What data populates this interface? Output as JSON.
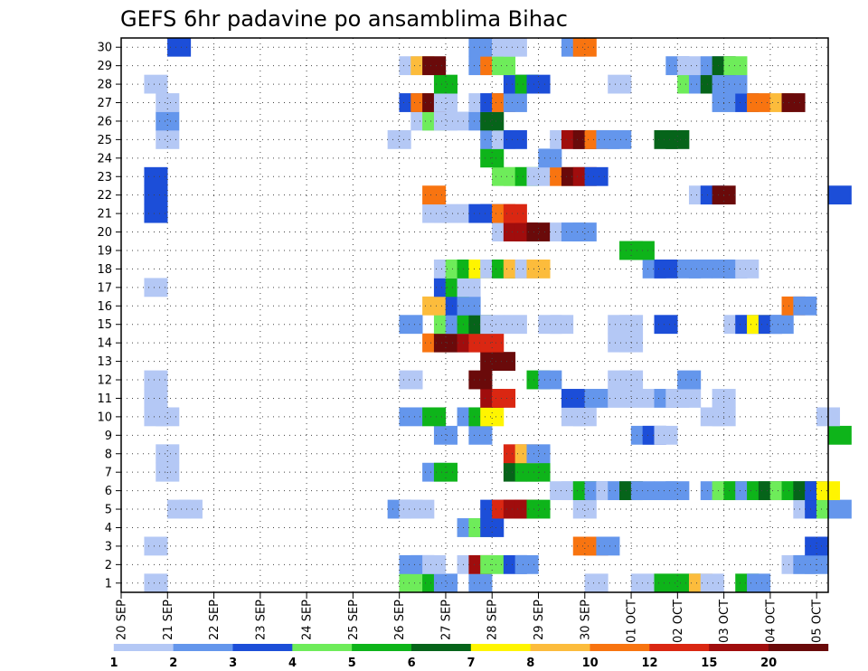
{
  "chart_data": {
    "type": "heatmap",
    "title": "GEFS 6hr padavine po ansamblima Bihac",
    "xlabel": "",
    "ylabel": "",
    "x_ticks": [
      "20 SEP",
      "21 SEP",
      "22 SEP",
      "23 SEP",
      "24 SEP",
      "25 SEP",
      "26 SEP",
      "27 SEP",
      "28 SEP",
      "29 SEP",
      "30 SEP",
      "01 OCT",
      "02 OCT",
      "03 OCT",
      "04 OCT",
      "05 OCT"
    ],
    "y_ticks": [
      "1",
      "2",
      "3",
      "4",
      "5",
      "6",
      "7",
      "8",
      "9",
      "10",
      "11",
      "12",
      "13",
      "14",
      "15",
      "16",
      "17",
      "18",
      "19",
      "20",
      "21",
      "22",
      "23",
      "24",
      "25",
      "26",
      "27",
      "28",
      "29",
      "30"
    ],
    "x_range": [
      "20 SEP",
      "05 OCT"
    ],
    "y_range": [
      0,
      30
    ],
    "grid": "dotted",
    "colorbar": {
      "position": "bottom",
      "levels": [
        "1",
        "2",
        "3",
        "4",
        "5",
        "6",
        "7",
        "8",
        "10",
        "12",
        "15",
        "20"
      ],
      "colors": [
        "#b4c8f5",
        "#6496ec",
        "#1c4ed8",
        "#6eec5a",
        "#0eb41a",
        "#06641a",
        "#fff500",
        "#fcbc3c",
        "#f87410",
        "#da2712",
        "#a00d0d",
        "#6a0a0a"
      ]
    },
    "cells_by_member": {
      "1": {
        "1.0": 1,
        "12.0": 4,
        "13.0": 5,
        "13.5": 2,
        "15.0": 2,
        "20.0": 1,
        "22.0": 1,
        "23.0": 5,
        "24.0": 5,
        "24.5": 8,
        "25.0": 1,
        "26.5": 5,
        "27.0": 2
      },
      "2": {
        "12.0": 2,
        "12.5": 2,
        "13.0": 1,
        "14.5": 1,
        "15.0": 11,
        "15.5": 4,
        "16.5": 3,
        "17.0": 2,
        "28.5": 1,
        "29.0": 2,
        "29.5": 2
      },
      "3": {
        "1.0": 1,
        "19.5": 9,
        "20.0": 9,
        "20.5": 2,
        "29.5": 3
      },
      "4": {
        "14.5": 2,
        "15.0": 4,
        "15.5": 3
      },
      "5": {
        "2.0": 1,
        "2.5": 1,
        "11.5": 2,
        "12.0": 1,
        "12.5": 1,
        "15.5": 3,
        "16.0": 10,
        "16.5": 11,
        "17.0": 11,
        "17.5": 5,
        "19.5": 1,
        "29.0": 1,
        "29.5": 3,
        "30.0": 4,
        "30.5": 2
      },
      "6": {
        "18.5": 1,
        "19.0": 1,
        "19.5": 5,
        "20.0": 2,
        "20.5": 1,
        "21.0": 2,
        "21.5": 6,
        "22.0": 2,
        "23.0": 2,
        "23.5": 2,
        "25.0": 2,
        "25.5": 4,
        "26.0": 5,
        "26.5": 2,
        "27.0": 5,
        "27.5": 6,
        "28.0": 4,
        "28.5": 5,
        "29.0": 6,
        "29.5": 3,
        "30.0": 7
      },
      "7": {
        "1.5": 1,
        "13.0": 2,
        "13.5": 5,
        "16.5": 6,
        "17.0": 5,
        "17.5": 5
      },
      "8": {
        "1.5": 1,
        "16.5": 10,
        "17.0": 8,
        "17.5": 2
      },
      "9": {
        "13.5": 2,
        "15.0": 2,
        "22.0": 2,
        "22.5": 3,
        "23.0": 1,
        "30.5": 5
      },
      "10": {
        "1.0": 1,
        "1.5": 1,
        "12.0": 2,
        "13.0": 5,
        "14.5": 2,
        "15.0": 5,
        "15.5": 7,
        "19.0": 1,
        "19.5": 1,
        "25.0": 1,
        "25.5": 1,
        "30.0": 1
      },
      "11": {
        "1.0": 1,
        "15.5": 11,
        "16.0": 10,
        "19.0": 3,
        "20.0": 2,
        "21.0": 1,
        "22.0": 1,
        "23.0": 2,
        "23.5": 1,
        "24.0": 1,
        "25.5": 1
      },
      "12": {
        "1.0": 1,
        "12.0": 1,
        "15.0": 12,
        "17.5": 5,
        "18.0": 2,
        "21.0": 1,
        "21.5": 1,
        "24.0": 2
      },
      "13": {
        "15.5": 12,
        "16.0": 12
      },
      "14": {
        "13.0": 9,
        "13.5": 12,
        "14.0": 12,
        "14.5": 11,
        "15.0": 10,
        "15.5": 10,
        "21.0": 1,
        "21.5": 1
      },
      "15": {
        "12.0": 2,
        "13.5": 4,
        "14.0": 2,
        "14.5": 5,
        "15.0": 6,
        "15.5": 1,
        "16.5": 1,
        "18.0": 1,
        "18.5": 1,
        "21.0": 1,
        "21.5": 1,
        "23.0": 3,
        "26.0": 1,
        "26.5": 3,
        "27.0": 7,
        "27.5": 3,
        "28.0": 2
      },
      "16": {
        "13.0": 8,
        "14.0": 3,
        "14.5": 2,
        "28.5": 9,
        "29.0": 2
      },
      "17": {
        "1.0": 1,
        "13.5": 3,
        "14.0": 5,
        "14.5": 1
      },
      "18": {
        "13.5": 1,
        "14.0": 4,
        "14.5": 5,
        "15.0": 7,
        "15.5": 1,
        "16.0": 5,
        "16.5": 8,
        "17.0": 1,
        "17.5": 8,
        "22.5": 2,
        "23.0": 3,
        "24.0": 2,
        "24.5": 2,
        "25.5": 2,
        "26.0": 2,
        "26.5": 1
      },
      "19": {
        "21.5": 5,
        "22.0": 5
      },
      "20": {
        "16.0": 1,
        "16.5": 11,
        "17.0": 11,
        "17.5": 12,
        "18.5": 1,
        "19.0": 2,
        "19.5": 2
      },
      "21": {
        "1.0": 3,
        "13.0": 1,
        "13.5": 1,
        "14.5": 1,
        "15.0": 3,
        "15.5": 3,
        "16.0": 9,
        "16.5": 10
      },
      "22": {
        "1.0": 3,
        "13.0": 9,
        "24.5": 1,
        "25.0": 3,
        "25.5": 12,
        "30.5": 3
      },
      "23": {
        "1.0": 3,
        "16.0": 4,
        "16.5": 4,
        "17.0": 5,
        "17.5": 1,
        "18.5": 9,
        "19.0": 12,
        "19.5": 11,
        "20.0": 3
      },
      "24": {
        "15.5": 5,
        "18.0": 2
      },
      "25": {
        "1.5": 1,
        "11.5": 1,
        "15.5": 2,
        "16.0": 1,
        "16.5": 3,
        "18.5": 1,
        "19.0": 11,
        "19.5": 12,
        "20.0": 9,
        "20.5": 2,
        "21.0": 2,
        "23.0": 6,
        "23.5": 6
      },
      "26": {
        "1.5": 2,
        "12.5": 1,
        "13.0": 4,
        "13.5": 1,
        "14.0": 1,
        "15.0": 2,
        "15.5": 6
      },
      "27": {
        "1.5": 1,
        "12.0": 3,
        "12.5": 9,
        "13.0": 12,
        "13.5": 1,
        "15.0": 1,
        "15.5": 3,
        "16.0": 9,
        "16.5": 2,
        "25.5": 2,
        "26.5": 3,
        "27.0": 9,
        "28.0": 8,
        "28.5": 12
      },
      "28": {
        "1.0": 1,
        "13.5": 5,
        "16.5": 3,
        "17.0": 5,
        "17.5": 3,
        "21.0": 1,
        "24.0": 4,
        "24.5": 2,
        "25.0": 6,
        "25.5": 2,
        "26.0": 2
      },
      "29": {
        "12.0": 1,
        "12.5": 8,
        "13.0": 12,
        "15.0": 2,
        "15.5": 9,
        "16.0": 4,
        "23.5": 2,
        "24.0": 1,
        "25.0": 2,
        "25.5": 6,
        "26.0": 4
      },
      "30": {
        "2.0": 3,
        "15.0": 2,
        "16.0": 1,
        "16.5": 1,
        "19.0": 2,
        "19.5": 9
      }
    }
  }
}
